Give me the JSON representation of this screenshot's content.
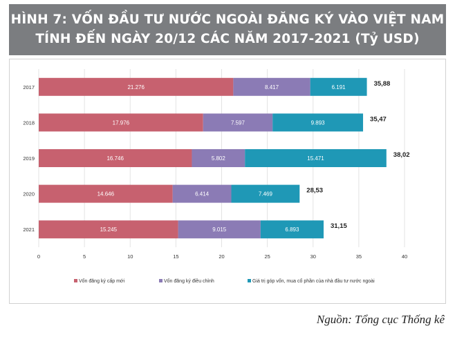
{
  "header": {
    "title_line1": "HÌNH 7: VỐN ĐẦU TƯ NƯỚC NGOÀI ĐĂNG KÝ VÀO VIỆT NAM",
    "title_line2": "TÍNH ĐẾN NGÀY 20/12 CÁC NĂM 2017-2021 (Tỷ USD)"
  },
  "source": "Nguồn: Tổng cục Thống kê",
  "chart_data": {
    "type": "bar",
    "orientation": "horizontal",
    "stacked": true,
    "categories": [
      "2017",
      "2018",
      "2019",
      "2020",
      "2021"
    ],
    "series": [
      {
        "name": "Vốn đăng ký cấp mới",
        "values": [
          21.276,
          17.976,
          16.746,
          14.646,
          15.245
        ],
        "labels": [
          "21.276",
          "17.976",
          "16.746",
          "14.646",
          "15.245"
        ],
        "color": "#c7616f"
      },
      {
        "name": "Vốn đăng ký điều chỉnh",
        "values": [
          8.417,
          7.597,
          5.802,
          6.414,
          9.015
        ],
        "labels": [
          "8.417",
          "7.597",
          "5.802",
          "6.414",
          "9.015"
        ],
        "color": "#8b7bb5"
      },
      {
        "name": "Giá trị góp vốn, mua cổ phần của nhà đầu tư nước ngoài",
        "values": [
          6.191,
          9.893,
          15.471,
          7.469,
          6.893
        ],
        "labels": [
          "6.191",
          "9.893",
          "15.471",
          "7.469",
          "6.893"
        ],
        "color": "#1f98b6"
      }
    ],
    "totals": [
      "35,88",
      "35,47",
      "38,02",
      "28,53",
      "31,15"
    ],
    "xlim": [
      0,
      40
    ],
    "xticks": [
      "0",
      "5",
      "10",
      "15",
      "20",
      "25",
      "30",
      "35",
      "40"
    ],
    "grid": true,
    "legend_position": "bottom"
  }
}
